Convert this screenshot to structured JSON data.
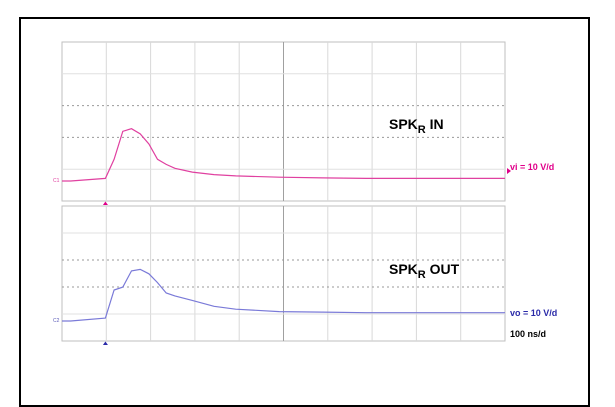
{
  "page": {
    "title": ""
  },
  "chart_data": [
    {
      "type": "line",
      "channel_label": "SPK",
      "channel_sub": "R",
      "channel_suffix": " IN",
      "scale_label": "vi = 10 V/d",
      "ground_marker": "C1",
      "color": "#e040a0",
      "x_divisions": 10,
      "y_divisions": 5,
      "x_time_ns": [
        -80,
        0,
        20,
        40,
        60,
        80,
        100,
        120,
        140,
        160,
        200,
        250,
        300,
        400,
        500,
        600,
        700,
        800,
        920
      ],
      "y_div": [
        0.0,
        0.1,
        0.85,
        1.95,
        2.05,
        1.85,
        1.45,
        0.85,
        0.65,
        0.5,
        0.35,
        0.25,
        0.2,
        0.15,
        0.12,
        0.1,
        0.1,
        0.1,
        0.1
      ]
    },
    {
      "type": "line",
      "channel_label": "SPK",
      "channel_sub": "R",
      "channel_suffix": " OUT",
      "scale_label": "vo = 10 V/d",
      "timebase_label": "100 ns/d",
      "ground_marker": "C2",
      "color": "#7a7ad8",
      "x_divisions": 10,
      "y_divisions": 5,
      "x_time_ns": [
        -80,
        0,
        20,
        40,
        60,
        80,
        100,
        120,
        140,
        160,
        200,
        250,
        300,
        400,
        500,
        600,
        700,
        800,
        920
      ],
      "y_div": [
        0.0,
        0.1,
        1.05,
        1.15,
        1.7,
        1.75,
        1.6,
        1.3,
        0.95,
        0.85,
        0.7,
        0.5,
        0.4,
        0.32,
        0.3,
        0.28,
        0.28,
        0.28,
        0.28
      ]
    }
  ]
}
